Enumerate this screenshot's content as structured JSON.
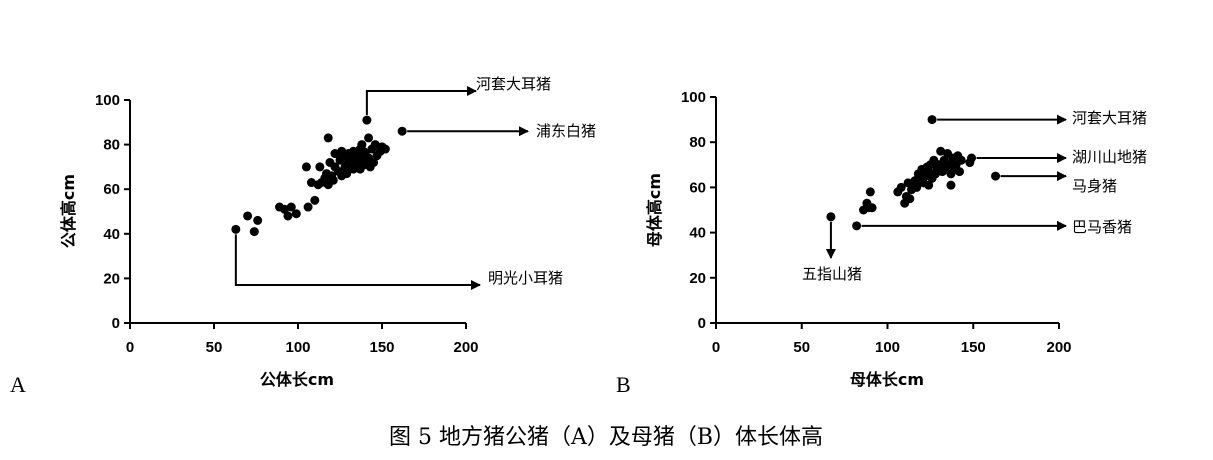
{
  "caption": "图 5 地方猪公猪（A）及母猪（B）体长体高",
  "chart_data": [
    {
      "type": "scatter",
      "panel_label": "A",
      "xlabel": "公体长cm",
      "ylabel": "公体高cm",
      "xlim": [
        0,
        200
      ],
      "ylim": [
        0,
        100
      ],
      "xticks": [
        0,
        50,
        100,
        150,
        200
      ],
      "yticks": [
        0,
        20,
        40,
        60,
        80,
        100
      ],
      "points": [
        [
          63,
          42
        ],
        [
          70,
          48
        ],
        [
          74,
          41
        ],
        [
          76,
          46
        ],
        [
          89,
          52
        ],
        [
          92,
          51
        ],
        [
          94,
          48
        ],
        [
          96,
          52
        ],
        [
          99,
          49
        ],
        [
          105,
          70
        ],
        [
          106,
          52
        ],
        [
          108,
          63
        ],
        [
          110,
          55
        ],
        [
          112,
          62
        ],
        [
          113,
          70
        ],
        [
          114,
          63
        ],
        [
          116,
          65
        ],
        [
          117,
          67
        ],
        [
          118,
          62
        ],
        [
          118,
          83
        ],
        [
          119,
          72
        ],
        [
          120,
          66
        ],
        [
          121,
          64
        ],
        [
          122,
          70
        ],
        [
          122,
          76
        ],
        [
          124,
          68
        ],
        [
          125,
          73
        ],
        [
          126,
          77
        ],
        [
          126,
          66
        ],
        [
          127,
          75
        ],
        [
          128,
          70
        ],
        [
          129,
          67
        ],
        [
          130,
          72
        ],
        [
          130,
          76
        ],
        [
          131,
          74
        ],
        [
          132,
          70
        ],
        [
          133,
          77
        ],
        [
          133,
          69
        ],
        [
          134,
          73
        ],
        [
          135,
          75
        ],
        [
          136,
          72
        ],
        [
          137,
          78
        ],
        [
          137,
          69
        ],
        [
          138,
          80
        ],
        [
          139,
          74
        ],
        [
          139,
          77
        ],
        [
          140,
          71
        ],
        [
          140,
          76
        ],
        [
          141,
          91
        ],
        [
          142,
          74
        ],
        [
          142,
          83
        ],
        [
          143,
          70
        ],
        [
          144,
          78
        ],
        [
          145,
          72
        ],
        [
          146,
          80
        ],
        [
          147,
          75
        ],
        [
          149,
          77
        ],
        [
          150,
          79
        ],
        [
          152,
          78
        ],
        [
          162,
          86
        ]
      ],
      "annotations": [
        {
          "label": "河套大耳猪",
          "point": [
            141,
            91
          ]
        },
        {
          "label": "浦东白猪",
          "point": [
            162,
            86
          ]
        },
        {
          "label": "明光小耳猪",
          "point": [
            63,
            42
          ]
        }
      ]
    },
    {
      "type": "scatter",
      "panel_label": "B",
      "xlabel": "母体长cm",
      "ylabel": "母体高cm",
      "xlim": [
        0,
        200
      ],
      "ylim": [
        0,
        100
      ],
      "xticks": [
        0,
        50,
        100,
        150,
        200
      ],
      "yticks": [
        0,
        20,
        40,
        60,
        80,
        100
      ],
      "points": [
        [
          67,
          47
        ],
        [
          82,
          43
        ],
        [
          86,
          50
        ],
        [
          88,
          53
        ],
        [
          89,
          51
        ],
        [
          90,
          58
        ],
        [
          91,
          51
        ],
        [
          106,
          58
        ],
        [
          108,
          60
        ],
        [
          110,
          53
        ],
        [
          111,
          56
        ],
        [
          112,
          62
        ],
        [
          113,
          55
        ],
        [
          114,
          59
        ],
        [
          115,
          61
        ],
        [
          116,
          63
        ],
        [
          117,
          60
        ],
        [
          118,
          66
        ],
        [
          119,
          63
        ],
        [
          120,
          68
        ],
        [
          121,
          62
        ],
        [
          122,
          65
        ],
        [
          123,
          69
        ],
        [
          124,
          61
        ],
        [
          124,
          67
        ],
        [
          125,
          70
        ],
        [
          126,
          64
        ],
        [
          126,
          90
        ],
        [
          127,
          72
        ],
        [
          128,
          66
        ],
        [
          129,
          68
        ],
        [
          130,
          70
        ],
        [
          131,
          76
        ],
        [
          132,
          67
        ],
        [
          133,
          72
        ],
        [
          134,
          69
        ],
        [
          135,
          75
        ],
        [
          136,
          70
        ],
        [
          137,
          66
        ],
        [
          137,
          61
        ],
        [
          138,
          73
        ],
        [
          139,
          68
        ],
        [
          140,
          70
        ],
        [
          141,
          74
        ],
        [
          142,
          67
        ],
        [
          143,
          72
        ],
        [
          148,
          71
        ],
        [
          149,
          73
        ],
        [
          163,
          65
        ]
      ],
      "annotations": [
        {
          "label": "河套大耳猪",
          "point": [
            126,
            90
          ]
        },
        {
          "label": "湖川山地猪",
          "point": [
            149,
            73
          ]
        },
        {
          "label": "马身猪",
          "point": [
            163,
            65
          ]
        },
        {
          "label": "巴马香猪",
          "point": [
            82,
            43
          ]
        },
        {
          "label": "五指山猪",
          "point": [
            67,
            47
          ]
        }
      ]
    }
  ]
}
